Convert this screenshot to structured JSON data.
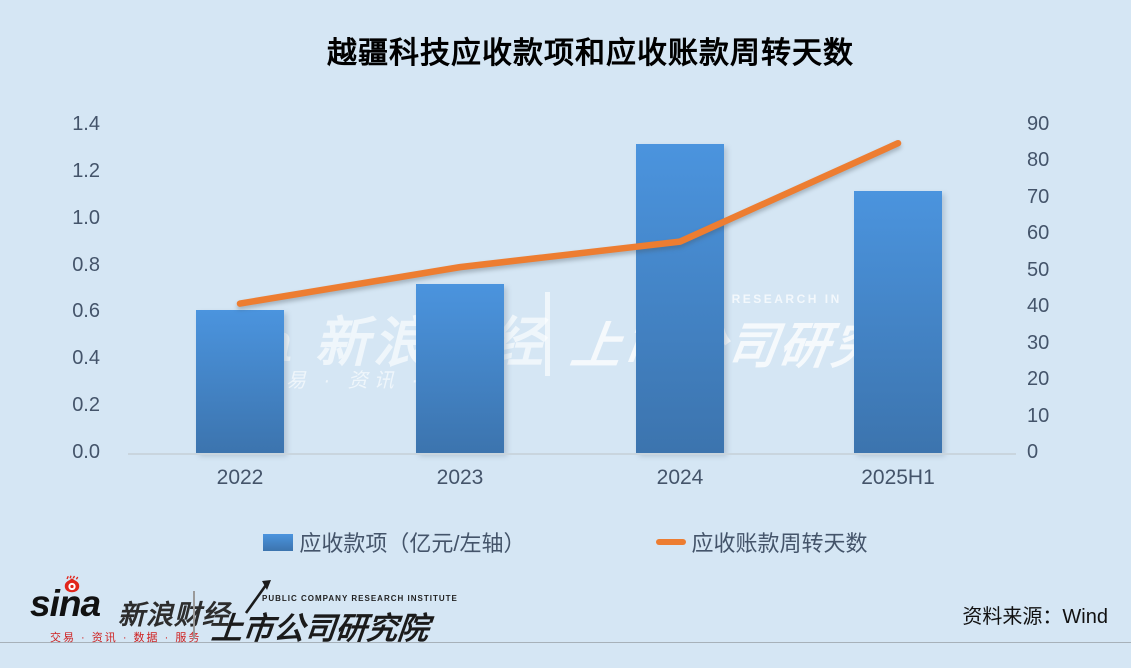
{
  "title": "越疆科技应收款项和应收账款周转天数",
  "chart_data": {
    "type": "bar",
    "categories": [
      "2022",
      "2023",
      "2024",
      "2025H1"
    ],
    "series": [
      {
        "name": "应收款项（亿元/左轴）",
        "type": "bar",
        "axis": "left",
        "values": [
          0.61,
          0.72,
          1.32,
          1.12
        ],
        "color_top": "#4b94de",
        "color_bottom": "#3c74ae"
      },
      {
        "name": "应收账款周转天数",
        "type": "line",
        "axis": "right",
        "values": [
          41,
          51,
          58,
          85
        ],
        "color": "#ed7d31"
      }
    ],
    "left_axis": {
      "min": 0,
      "max": 1.4,
      "ticks": [
        "1.4",
        "1.2",
        "1.0",
        "0.8",
        "0.6",
        "0.4",
        "0.2",
        "0.0"
      ]
    },
    "right_axis": {
      "min": 0,
      "max": 90,
      "ticks": [
        "90",
        "80",
        "70",
        "60",
        "50",
        "40",
        "30",
        "20",
        "10",
        "0"
      ]
    },
    "grid": false,
    "legend_position": "bottom"
  },
  "watermark": {
    "sina_fragment": "a 新浪财经",
    "tagline_fragment": "易 · 资讯 · 数据",
    "institute_fragment": "上市公司研究",
    "caps_fragment": "COMPANY RESEARCH IN"
  },
  "footer": {
    "sina_logo_text": "sina",
    "sina_brand": "新浪财经",
    "sina_tagline": "交易 · 资讯 · 数据 · 服务",
    "institute_caps": "PUBLIC COMPANY RESEARCH INSTITUTE",
    "institute_name": "上市公司研究院",
    "source": "资料来源：Wind"
  },
  "colors": {
    "background": "#d5e6f4",
    "bar_top": "#4b94de",
    "bar_bottom": "#3c74ae",
    "line": "#ed7d31",
    "axis_text": "#44546a",
    "sina_red": "#e1251b"
  }
}
